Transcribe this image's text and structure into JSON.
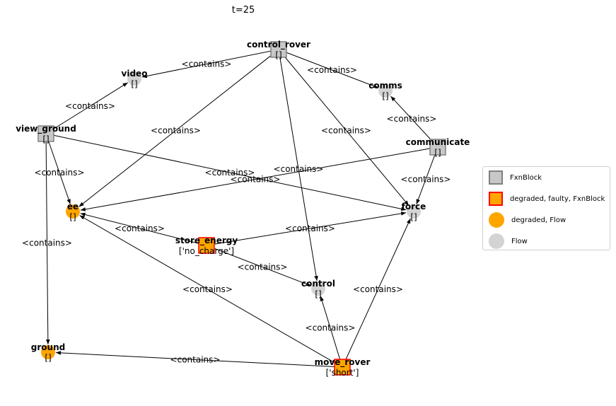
{
  "title": "t=25",
  "colors": {
    "fxnblock_fill": "#c8c8c8",
    "fxnblock_border": "#808080",
    "degraded_fill": "#ffa500",
    "faulty_border": "#ff0000",
    "flow_fill": "#d3d3d3"
  },
  "nodes": [
    {
      "id": "control_rover",
      "label": "control_rover",
      "sub": "[]",
      "kind": "fxnblock"
    },
    {
      "id": "video",
      "label": "video",
      "sub": "[]",
      "kind": "flow"
    },
    {
      "id": "comms",
      "label": "comms",
      "sub": "[]",
      "kind": "flow"
    },
    {
      "id": "view_ground",
      "label": "view_ground",
      "sub": "[]",
      "kind": "fxnblock"
    },
    {
      "id": "communicate",
      "label": "communicate",
      "sub": "[]",
      "kind": "fxnblock"
    },
    {
      "id": "ee",
      "label": "ee",
      "sub": "[]",
      "kind": "degraded_flow"
    },
    {
      "id": "force",
      "label": "force",
      "sub": "[]",
      "kind": "flow"
    },
    {
      "id": "store_energy",
      "label": "store_energy",
      "sub": "['no_charge']",
      "kind": "faulty_fxnblock"
    },
    {
      "id": "control",
      "label": "control",
      "sub": "[]",
      "kind": "flow"
    },
    {
      "id": "ground",
      "label": "ground",
      "sub": "[]",
      "kind": "degraded_flow"
    },
    {
      "id": "move_rover",
      "label": "move_rover",
      "sub": "['short']",
      "kind": "faulty_fxnblock"
    }
  ],
  "edges": [
    {
      "from": "control_rover",
      "to": "video",
      "label": "<contains>"
    },
    {
      "from": "control_rover",
      "to": "comms",
      "label": "<contains>"
    },
    {
      "from": "control_rover",
      "to": "ee",
      "label": "<contains>"
    },
    {
      "from": "control_rover",
      "to": "force",
      "label": "<contains>"
    },
    {
      "from": "control_rover",
      "to": "control",
      "label": "<contains>"
    },
    {
      "from": "view_ground",
      "to": "video",
      "label": "<contains>"
    },
    {
      "from": "view_ground",
      "to": "ee",
      "label": "<contains>"
    },
    {
      "from": "view_ground",
      "to": "force",
      "label": "<contains>"
    },
    {
      "from": "view_ground",
      "to": "ground",
      "label": "<contains>"
    },
    {
      "from": "communicate",
      "to": "comms",
      "label": "<contains>"
    },
    {
      "from": "communicate",
      "to": "ee",
      "label": "<contains>"
    },
    {
      "from": "communicate",
      "to": "force",
      "label": "<contains>"
    },
    {
      "from": "store_energy",
      "to": "ee",
      "label": "<contains>"
    },
    {
      "from": "store_energy",
      "to": "force",
      "label": "<contains>"
    },
    {
      "from": "store_energy",
      "to": "control",
      "label": "<contains>"
    },
    {
      "from": "move_rover",
      "to": "ee",
      "label": "<contains>"
    },
    {
      "from": "move_rover",
      "to": "force",
      "label": "<contains>"
    },
    {
      "from": "move_rover",
      "to": "control",
      "label": "<contains>"
    },
    {
      "from": "move_rover",
      "to": "ground",
      "label": "<contains>"
    }
  ],
  "legend": [
    {
      "label": "FxnBlock",
      "kind": "fxnblock"
    },
    {
      "label": "degraded, faulty, FxnBlock",
      "kind": "faulty_fxnblock"
    },
    {
      "label": "degraded, Flow",
      "kind": "degraded_flow"
    },
    {
      "label": "Flow",
      "kind": "flow"
    }
  ]
}
